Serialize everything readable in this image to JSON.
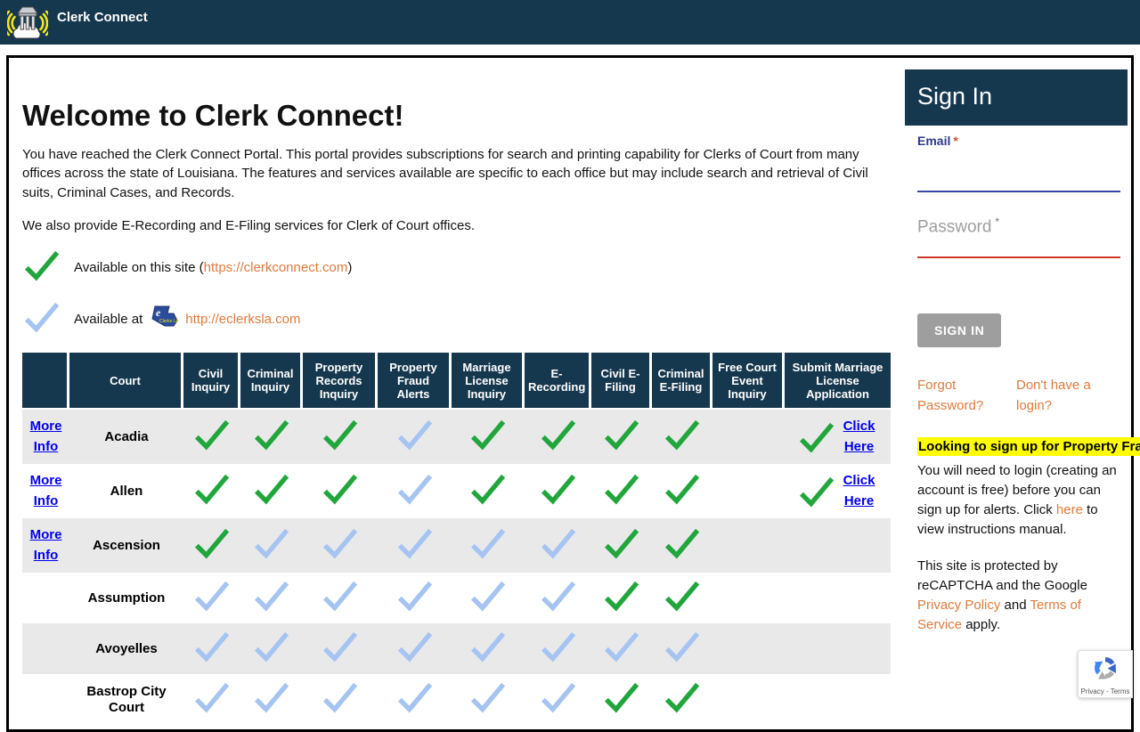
{
  "colors": {
    "navy": "#16384F",
    "check_green": "#21A63C",
    "check_blue": "#A5C4F1",
    "link_orange": "#DD7B3C",
    "link_blue": "#0000EE",
    "highlight_yellow": "#FFFF00",
    "button_gray": "#9E9E9E",
    "email_accent": "#3B44A8",
    "password_error_red": "#D0342C"
  },
  "navbar": {
    "title": "Clerk Connect"
  },
  "main": {
    "heading": "Welcome to Clerk Connect!",
    "paragraph1": "You have reached the Clerk Connect Portal. This portal provides subscriptions for search and printing capability for Clerks of Court from many offices across the state of Louisiana. The features and services available are specific to each office but may include search and retrieval of Civil suits, Criminal Cases, and Records.",
    "paragraph2": "We also provide E-Recording and E-Filing services for Clerk of Court offices.",
    "legend": {
      "green_before": "Available on this site (",
      "green_link": "https://clerkconnect.com",
      "green_after": ")",
      "blue_before": "Available at",
      "blue_logo_text": "Clerks LA",
      "blue_link": "http://eclerksla.com"
    },
    "table": {
      "headers": [
        "",
        "Court",
        "Civil Inquiry",
        "Criminal Inquiry",
        "Property Records Inquiry",
        "Property Fraud Alerts",
        "Marriage License Inquiry",
        "E-Recording",
        "Civil E-Filing",
        "Criminal E-Filing",
        "Free Court Event Inquiry",
        "Submit Marriage License Application"
      ],
      "more_info_label": "More Info",
      "click_here_label": "Click Here",
      "rows": [
        {
          "more_info": true,
          "court": "Acadia",
          "services": [
            "green",
            "green",
            "green",
            "blue",
            "green",
            "green",
            "green",
            "green",
            "none"
          ],
          "submit": "green",
          "click_here": true
        },
        {
          "more_info": true,
          "court": "Allen",
          "services": [
            "green",
            "green",
            "green",
            "blue",
            "green",
            "green",
            "green",
            "green",
            "none"
          ],
          "submit": "green",
          "click_here": true
        },
        {
          "more_info": true,
          "court": "Ascension",
          "services": [
            "green",
            "blue",
            "blue",
            "blue",
            "blue",
            "blue",
            "green",
            "green",
            "none"
          ],
          "submit": "none",
          "click_here": false
        },
        {
          "more_info": false,
          "court": "Assumption",
          "services": [
            "blue",
            "blue",
            "blue",
            "blue",
            "blue",
            "blue",
            "green",
            "green",
            "none"
          ],
          "submit": "none",
          "click_here": false
        },
        {
          "more_info": false,
          "court": "Avoyelles",
          "services": [
            "blue",
            "blue",
            "blue",
            "blue",
            "blue",
            "blue",
            "blue",
            "blue",
            "none"
          ],
          "submit": "none",
          "click_here": false
        },
        {
          "more_info": false,
          "court": "Bastrop City Court",
          "services": [
            "blue",
            "blue",
            "blue",
            "blue",
            "blue",
            "blue",
            "green",
            "green",
            "none"
          ],
          "submit": "none",
          "click_here": false
        }
      ]
    }
  },
  "sidebar": {
    "title": "Sign In",
    "email_label": "Email",
    "email_required": "*",
    "email_value": "",
    "password_label": "Password",
    "password_required": "*",
    "password_value": "",
    "signin_button": "SIGN IN",
    "forgot_password": "Forgot Password?",
    "no_login": "Don't have a login?",
    "fraud_banner": "Looking to sign up for Property Fraud Alerts?",
    "fraud_before_link": "You will need to login (creating an account is free) before you can sign up for alerts. Click ",
    "fraud_link": "here",
    "fraud_after_link": " to view instructions manual.",
    "recaptcha_p1": "This site is protected by reCAPTCHA and the Google ",
    "recaptcha_link1": "Privacy Policy",
    "recaptcha_mid": " and ",
    "recaptcha_link2": "Terms of Service",
    "recaptcha_end": " apply.",
    "recaptcha_badge_label": "Privacy - Terms"
  }
}
